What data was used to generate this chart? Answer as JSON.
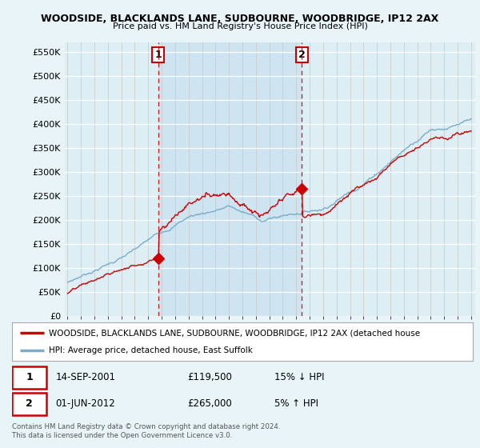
{
  "title": "WOODSIDE, BLACKLANDS LANE, SUDBOURNE, WOODBRIDGE, IP12 2AX",
  "subtitle": "Price paid vs. HM Land Registry's House Price Index (HPI)",
  "legend_red": "WOODSIDE, BLACKLANDS LANE, SUDBOURNE, WOODBRIDGE, IP12 2AX (detached house",
  "legend_blue": "HPI: Average price, detached house, East Suffolk",
  "transaction1_date": "14-SEP-2001",
  "transaction1_price": "£119,500",
  "transaction1_hpi": "15% ↓ HPI",
  "transaction2_date": "01-JUN-2012",
  "transaction2_price": "£265,000",
  "transaction2_hpi": "5% ↑ HPI",
  "footer": "Contains HM Land Registry data © Crown copyright and database right 2024.\nThis data is licensed under the Open Government Licence v3.0.",
  "vline1_year": 2001.75,
  "vline2_year": 2012.42,
  "marker1_x": 2001.75,
  "marker1_y": 119500,
  "marker2_x": 2012.42,
  "marker2_y": 265000,
  "ylim": [
    0,
    570000
  ],
  "xlim_start": 1994.8,
  "xlim_end": 2025.3,
  "background_color": "#e8f4f8",
  "plot_bg": "#ddeef5",
  "shade_color": "#c8e0f0",
  "red_color": "#cc0000",
  "blue_color": "#7aadcc",
  "grid_color": "#cccccc"
}
